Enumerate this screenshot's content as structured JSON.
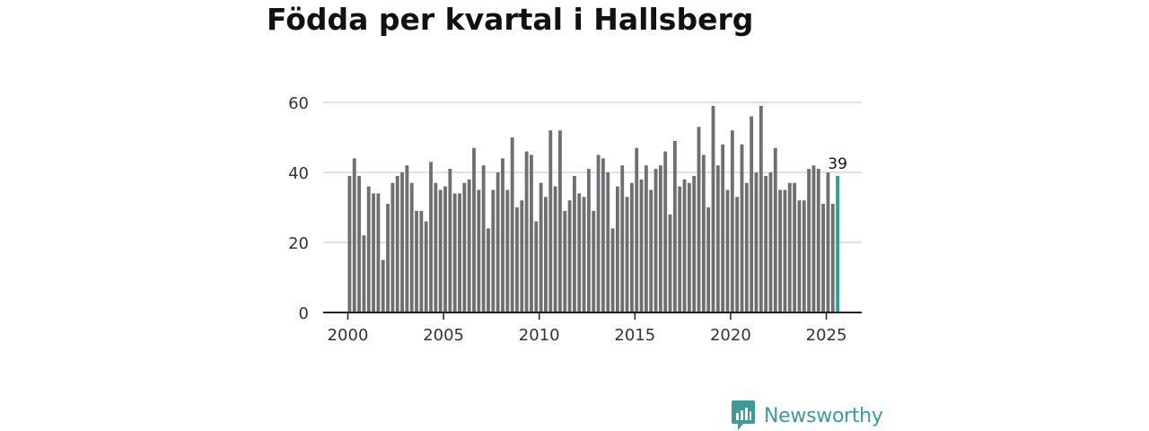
{
  "title": "Födda per kvartal i Hallsberg",
  "brand": {
    "name": "Newsworthy",
    "color": "#3d9b95"
  },
  "colors": {
    "bar": "#6e6e73",
    "highlight": "#2aa198",
    "grid": "#d9d9d9",
    "axis": "#222222"
  },
  "chart_data": {
    "type": "bar",
    "title": "Födda per kvartal i Hallsberg",
    "xlabel": "",
    "ylabel": "",
    "ylim": [
      0,
      60
    ],
    "yticks": [
      "0",
      "20",
      "40",
      "60"
    ],
    "xticks": [
      "2000",
      "2005",
      "2010",
      "2015",
      "2020",
      "2025"
    ],
    "start_year": 2000,
    "highlight_label": "39",
    "values": [
      39,
      44,
      39,
      22,
      36,
      34,
      34,
      15,
      31,
      37,
      39,
      40,
      42,
      37,
      29,
      29,
      26,
      43,
      37,
      35,
      36,
      41,
      34,
      34,
      37,
      38,
      47,
      35,
      42,
      24,
      35,
      40,
      44,
      35,
      50,
      30,
      32,
      46,
      45,
      26,
      37,
      33,
      52,
      36,
      52,
      29,
      32,
      39,
      34,
      33,
      41,
      29,
      45,
      44,
      40,
      24,
      36,
      42,
      33,
      37,
      47,
      38,
      42,
      35,
      41,
      42,
      46,
      28,
      49,
      36,
      38,
      37,
      39,
      53,
      45,
      30,
      59,
      42,
      48,
      35,
      52,
      33,
      48,
      37,
      56,
      40,
      59,
      39,
      40,
      47,
      35,
      35,
      37,
      37,
      32,
      32,
      41,
      42,
      41,
      31,
      40,
      31,
      39
    ]
  }
}
